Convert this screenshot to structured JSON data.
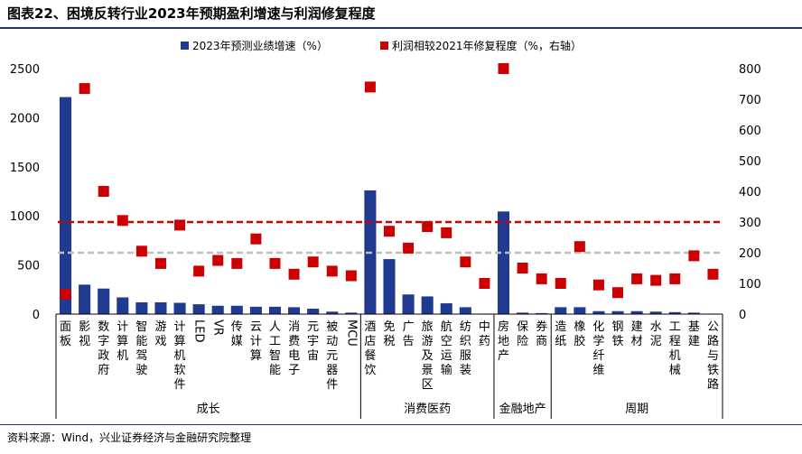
{
  "title": "图表22、困境反转行业2023年预期盈利增速与利润修复程度",
  "source": "资料来源：Wind，兴业证券经济与金融研究院整理",
  "colors": {
    "bar": "#1f3a8f",
    "marker": "#cc0000",
    "red_line": "#cc0000",
    "gray_line": "#bfbfbf",
    "rule": "#1f3864"
  },
  "chart_data": {
    "type": "bar",
    "legend": {
      "bar": "2023年预测业绩增速（%）",
      "marker": "利润相较2021年修复程度（%，右轴）",
      "placement": "top"
    },
    "categories": [
      "面板",
      "影视",
      "数字政府",
      "计算机",
      "智能驾驶",
      "游戏",
      "计算机软件",
      "LED",
      "VR",
      "传媒",
      "云计算",
      "人工智能",
      "消费电子",
      "元宇宙",
      "被动元器件",
      "MCU",
      "酒店餐饮",
      "免税",
      "广告",
      "旅游及景区",
      "航空运输",
      "纺织服装",
      "中药",
      "房地产",
      "保险",
      "券商",
      "造纸",
      "橡胶",
      "化学纤维",
      "钢铁",
      "建材",
      "水泥",
      "工程机械",
      "基建",
      "公路与铁路"
    ],
    "category_labels": [
      "面板",
      "影视",
      "数字政府",
      "计算机",
      "智能驾驶",
      "游戏",
      "计算机软件",
      "LED",
      "VR",
      "传媒",
      "云计算",
      "人工智能",
      "消费电子",
      "元宇宙",
      "被动元器件",
      "MCU",
      "酒店餐饮",
      "免税",
      "广告",
      "旅游及景区",
      "航空运输",
      "纺织服装",
      "中药",
      "房地产",
      "保险",
      "券商",
      "造纸",
      "橡胶",
      "化学纤维",
      "钢铁",
      "建材",
      "水泥",
      "工程机械",
      "基建",
      "公路与铁路"
    ],
    "vertical_label_categories": [
      "LED",
      "VR",
      "MCU"
    ],
    "series": [
      {
        "name": "2023年预测业绩增速（%）",
        "type": "bar",
        "axis": "left",
        "values": [
          2210,
          300,
          260,
          170,
          120,
          120,
          115,
          100,
          85,
          85,
          75,
          75,
          70,
          55,
          25,
          15,
          1260,
          560,
          200,
          180,
          110,
          70,
          5,
          1045,
          15,
          10,
          70,
          70,
          30,
          30,
          30,
          25,
          20,
          15,
          5
        ]
      },
      {
        "name": "利润相较2021年修复程度（%，右轴）",
        "type": "scatter",
        "axis": "right",
        "values": [
          65,
          735,
          400,
          305,
          205,
          165,
          290,
          140,
          175,
          165,
          245,
          165,
          130,
          170,
          140,
          125,
          740,
          270,
          215,
          285,
          265,
          170,
          100,
          800,
          150,
          115,
          100,
          220,
          95,
          70,
          115,
          110,
          115,
          190,
          130
        ]
      }
    ],
    "reference_lines": [
      {
        "axis": "right",
        "value": 300,
        "color": "#cc0000",
        "style": "dashed"
      },
      {
        "axis": "right",
        "value": 200,
        "color": "#bfbfbf",
        "style": "dashed"
      }
    ],
    "ylim_left": [
      0,
      2500
    ],
    "yticks_left": [
      0,
      500,
      1000,
      1500,
      2000,
      2500
    ],
    "ylim_right": [
      0,
      800
    ],
    "yticks_right": [
      0,
      100,
      200,
      300,
      400,
      500,
      600,
      700,
      800
    ],
    "groups": [
      {
        "label": "成长",
        "start": 0,
        "end": 15
      },
      {
        "label": "消费医药",
        "start": 16,
        "end": 22
      },
      {
        "label": "金融地产",
        "start": 23,
        "end": 25
      },
      {
        "label": "周期",
        "start": 26,
        "end": 34
      }
    ],
    "grid": false
  }
}
